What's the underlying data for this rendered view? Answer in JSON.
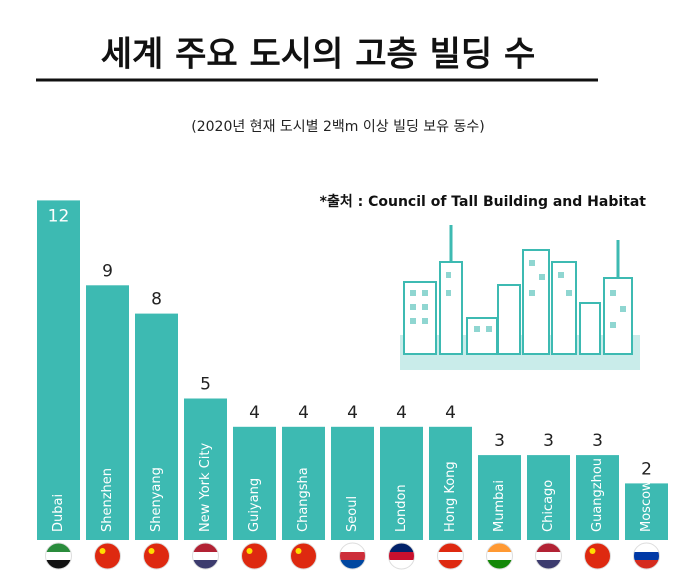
{
  "chart_data": {
    "type": "bar",
    "title": "세계 주요 도시의 고층 빌딩 수",
    "subtitle": "(2020년 현재 도시별 2백m 이상 빌딩 보유 동수)",
    "source": "*출처 :  Council of Tall Building and Habitat",
    "categories": [
      "Dubai",
      "Shenzhen",
      "Shenyang",
      "New York City",
      "Guiyang",
      "Changsha",
      "Seoul",
      "London",
      "Hong Kong",
      "Mumbai",
      "Chicago",
      "Guangzhou",
      "Moscow"
    ],
    "values": [
      12,
      9,
      8,
      5,
      4,
      4,
      4,
      4,
      4,
      3,
      3,
      3,
      2
    ],
    "color": "#3dbab2"
  }
}
